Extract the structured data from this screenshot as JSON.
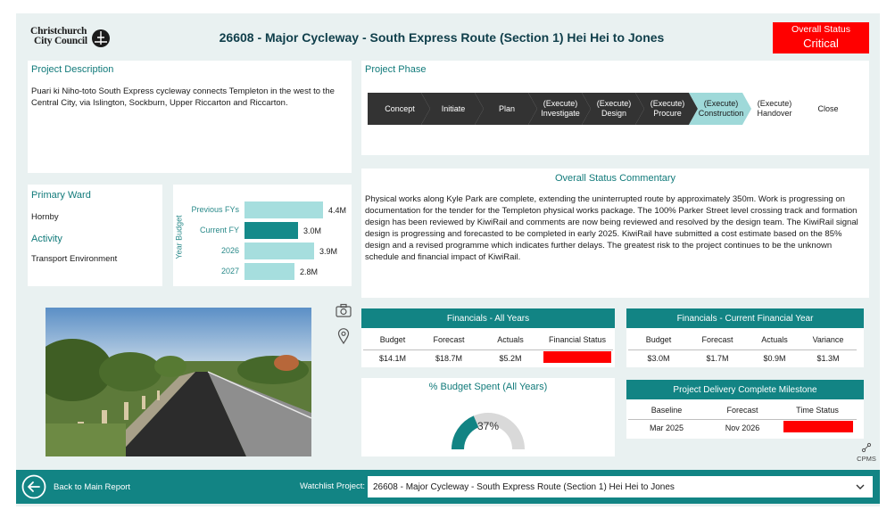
{
  "header": {
    "logo_line1": "Christchurch",
    "logo_line2": "City Council",
    "title": "26608 - Major Cycleway - South Express Route (Section 1) Hei Hei to Jones",
    "status_label": "Overall Status",
    "status_value": "Critical",
    "status_color": "#ff0000"
  },
  "description": {
    "title": "Project Description",
    "text": "Puari ki Niho-toto South Express cycleway connects Templeton in the west to the Central City, via Islington, Sockburn, Upper Riccarton and Riccarton."
  },
  "phase": {
    "title": "Project Phase",
    "steps": [
      {
        "line1": "",
        "line2": "Concept",
        "state": "done"
      },
      {
        "line1": "",
        "line2": "Initiate",
        "state": "done"
      },
      {
        "line1": "",
        "line2": "Plan",
        "state": "done"
      },
      {
        "line1": "(Execute)",
        "line2": "Investigate",
        "state": "done"
      },
      {
        "line1": "(Execute)",
        "line2": "Design",
        "state": "done"
      },
      {
        "line1": "(Execute)",
        "line2": "Procure",
        "state": "done"
      },
      {
        "line1": "(Execute)",
        "line2": "Construction",
        "state": "current"
      },
      {
        "line1": "(Execute)",
        "line2": "Handover",
        "state": "future"
      },
      {
        "line1": "",
        "line2": "Close",
        "state": "future"
      }
    ],
    "colors": {
      "done": "#333333",
      "current": "#9fd9d9",
      "future": "#ffffff"
    }
  },
  "commentary": {
    "title": "Overall Status Commentary",
    "text": "Physical works along Kyle Park are complete, extending the uninterrupted route by approximately 350m. Work is progressing on documentation for the tender for the Templeton physical works package. The 100% Parker Street level crossing track and formation design has been reviewed by KiwiRail and comments are now being reviewed and resolved by the design team. The KiwiRail signal design is progressing and forecasted to be completed in early 2025. KiwiRail have submitted a cost estimate based on the 85% design and a revised programme which indicates further delays. The greatest risk to the project continues to be the unknown schedule and financial impact of KiwiRail."
  },
  "ward": {
    "ward_label": "Primary Ward",
    "ward_value": "Hornby",
    "activity_label": "Activity",
    "activity_value": "Transport Environment"
  },
  "chart_data": {
    "type": "bar",
    "orientation": "horizontal",
    "title": "",
    "ylabel": "Year Budget",
    "categories": [
      "Previous FYs",
      "Current FY",
      "2026",
      "2027"
    ],
    "values": [
      4.4,
      3.0,
      3.9,
      2.8
    ],
    "value_labels": [
      "4.4M",
      "3.0M",
      "3.9M",
      "2.8M"
    ],
    "bar_colors": [
      "#a6dede",
      "#158a8a",
      "#a6dede",
      "#a6dede"
    ],
    "xlim": [
      0,
      4.5
    ]
  },
  "financials_all": {
    "title": "Financials - All Years",
    "headers": [
      "Budget",
      "Forecast",
      "Actuals",
      "Financial Status"
    ],
    "values": [
      "$14.1M",
      "$18.7M",
      "$5.2M"
    ],
    "status_color": "#ff0000"
  },
  "financials_current": {
    "title": "Financials - Current Financial Year",
    "headers": [
      "Budget",
      "Forecast",
      "Actuals",
      "Variance"
    ],
    "values": [
      "$3.0M",
      "$1.7M",
      "$0.9M",
      "$1.3M"
    ]
  },
  "budget_spent": {
    "title": "% Budget Spent (All Years)",
    "value_label": "37%",
    "fraction": 0.37,
    "fill_color": "#128484",
    "track_color": "#d9d9d9"
  },
  "milestone": {
    "title": "Project Delivery Complete Milestone",
    "headers": [
      "Baseline",
      "Forecast",
      "Time Status"
    ],
    "values": [
      "Mar 2025",
      "Nov 2026"
    ],
    "status_color": "#ff0000"
  },
  "side_icons": [
    "camera-icon",
    "map-pin-icon"
  ],
  "cpms_label": "CPMS",
  "footer": {
    "back_label": "Back to Main Report",
    "watchlist_label": "Watchlist Project:",
    "watchlist_value": "26608 - Major Cycleway - South Express Route (Section 1) Hei Hei to Jones"
  },
  "colors": {
    "accent": "#128484",
    "background": "#e9f1f1",
    "critical": "#ff0000"
  }
}
